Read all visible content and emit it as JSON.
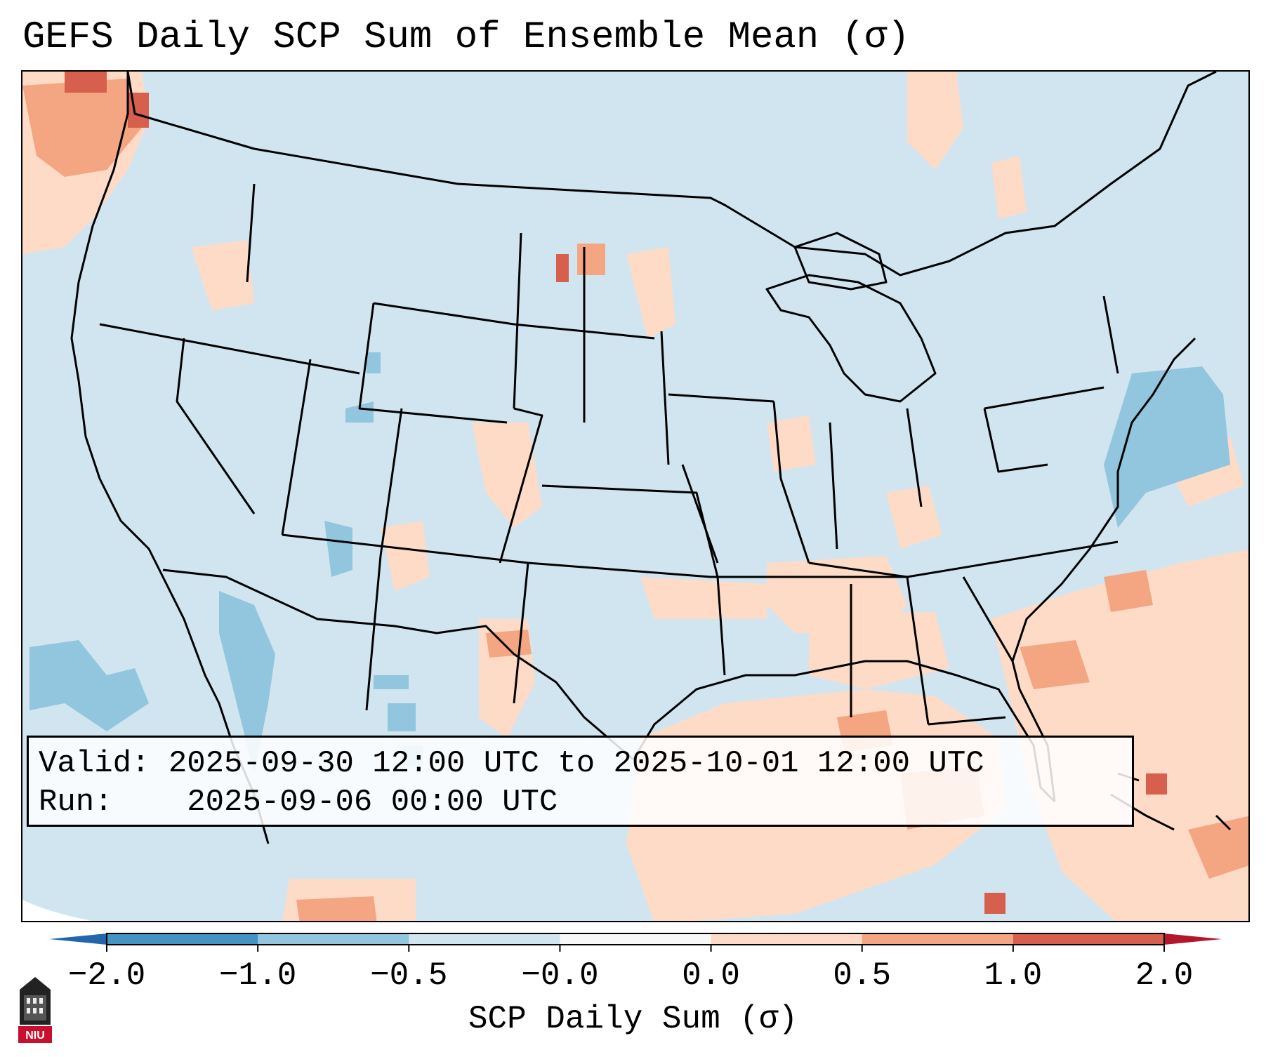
{
  "title": "GEFS Daily SCP Sum of Ensemble Mean (σ)",
  "info": {
    "valid_label": "Valid:",
    "valid_value": "2025-09-30 12:00 UTC to 2025-10-01 12:00 UTC",
    "run_label": "Run:",
    "run_value": "2025-09-06 00:00 UTC"
  },
  "colorbar": {
    "label": "SCP Daily Sum (σ)",
    "ticks": [
      "−2.0",
      "−1.0",
      "−0.5",
      "−0.0",
      "0.0",
      "0.5",
      "1.0",
      "2.0"
    ],
    "bin_colors": [
      "#4393c3",
      "#92c5de",
      "#d1e5f0",
      "#f7f7f7",
      "#fddbc7",
      "#f4a582",
      "#d6604d"
    ],
    "under_color": "#2166ac",
    "over_color": "#b2182b"
  },
  "map": {
    "region": "CONUS",
    "base_field_color": "#d1e5f0",
    "outside_domain_color": "#ffffff"
  },
  "logo": {
    "text": "NIU",
    "color": "#c8102e"
  }
}
